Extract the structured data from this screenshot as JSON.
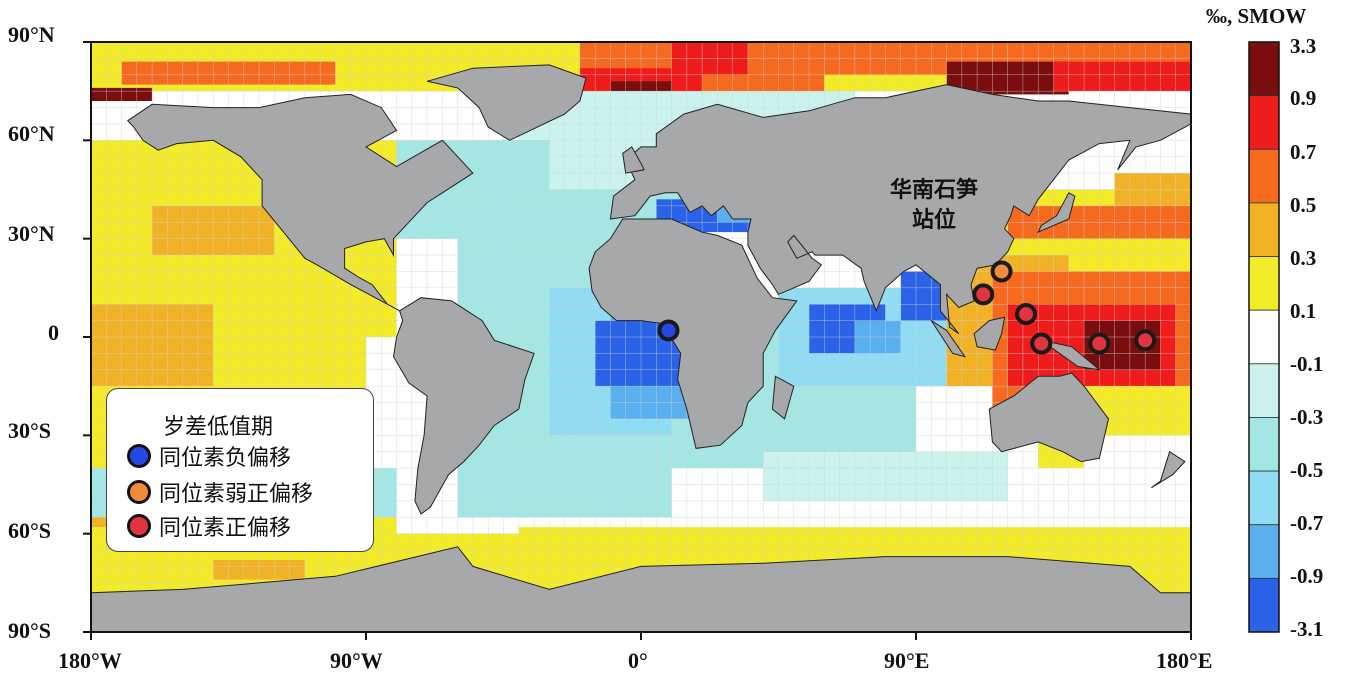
{
  "colors": {
    "land": "#a6a8aa",
    "ocean_default": "#ffffff",
    "grid_line": "#cfd3d6",
    "frame": "#111111",
    "marker_negative": "#2448e6",
    "marker_weak_positive": "#f08a3c",
    "marker_positive": "#e2343e",
    "marker_edge": "#1a1a1a"
  },
  "axes": {
    "lat_labels": [
      "90°N",
      "60°N",
      "30°N",
      "0",
      "30°S",
      "60°S",
      "90°S"
    ],
    "lon_labels": [
      "180°W",
      "90°W",
      "0°",
      "90°E",
      "180°E"
    ]
  },
  "colorbar": {
    "title": "‰, SMOW",
    "tick_labels": [
      "3.3",
      "0.9",
      "0.7",
      "0.5",
      "0.3",
      "0.1",
      "-0.1",
      "-0.3",
      "-0.5",
      "-0.7",
      "-0.9",
      "-3.1"
    ],
    "bins": [
      {
        "color": "#7a0d0d"
      },
      {
        "color": "#f01c1c"
      },
      {
        "color": "#f56a1e"
      },
      {
        "color": "#f2b227"
      },
      {
        "color": "#f3ea28"
      },
      {
        "color": "#ffffff"
      },
      {
        "color": "#c9f3ec"
      },
      {
        "color": "#a4e6e3"
      },
      {
        "color": "#8fdcf3"
      },
      {
        "color": "#5ab0ef"
      },
      {
        "color": "#2a62e8"
      }
    ]
  },
  "site_label": {
    "line1": "华南石笋",
    "line2": "站位"
  },
  "legend": {
    "title": "岁差低值期",
    "items": [
      {
        "label": "同位素负偏移",
        "color": "#2448e6"
      },
      {
        "label": "同位素弱正偏移",
        "color": "#f08a3c"
      },
      {
        "label": "同位素正偏移",
        "color": "#e2343e"
      }
    ]
  },
  "markers": [
    {
      "lon": 9,
      "lat": 2,
      "type": "negative"
    },
    {
      "lon": 118,
      "lat": 20,
      "type": "weak_positive"
    },
    {
      "lon": 112,
      "lat": 13,
      "type": "positive"
    },
    {
      "lon": 126,
      "lat": 7,
      "type": "positive"
    },
    {
      "lon": 131,
      "lat": -2,
      "type": "positive"
    },
    {
      "lon": 150,
      "lat": -2,
      "type": "positive"
    },
    {
      "lon": 165,
      "lat": -1,
      "type": "positive"
    }
  ]
}
